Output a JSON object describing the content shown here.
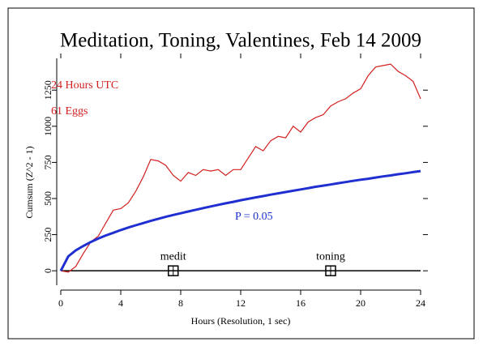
{
  "chart_data": {
    "type": "line",
    "title": "Meditation, Toning, Valentines, Feb 14 2009",
    "x_label": "Hours (Resolution, 1 sec)",
    "y_label": "Cumsum (Z^2 - 1)",
    "annotations": [
      "24 Hours UTC",
      "61 Eggs",
      "P = 0.05"
    ],
    "x": [
      0,
      0.5,
      1,
      1.5,
      2,
      2.5,
      3,
      3.5,
      4,
      4.5,
      5,
      5.5,
      6,
      6.5,
      7,
      7.5,
      8,
      8.5,
      9,
      9.5,
      10,
      10.5,
      11,
      11.5,
      12,
      12.5,
      13,
      13.5,
      14,
      14.5,
      15,
      15.5,
      16,
      16.5,
      17,
      17.5,
      18,
      18.5,
      19,
      19.5,
      20,
      20.5,
      21,
      21.5,
      22,
      22.5,
      23,
      23.5,
      24
    ],
    "series": [
      {
        "color": "#d42020",
        "values": [
          0,
          -10,
          30,
          120,
          200,
          240,
          330,
          420,
          430,
          470,
          550,
          650,
          770,
          760,
          730,
          660,
          620,
          680,
          660,
          700,
          690,
          700,
          660,
          700,
          700,
          780,
          860,
          830,
          900,
          930,
          920,
          1000,
          960,
          1030,
          1060,
          1080,
          1140,
          1170,
          1190,
          1230,
          1260,
          1350,
          1410,
          1420,
          1430,
          1380,
          1350,
          1310,
          1190
        ]
      },
      {
        "color": "#1f2fd0",
        "values": [
          0,
          100,
          141,
          172,
          199,
          223,
          244,
          263,
          282,
          299,
          315,
          330,
          345,
          359,
          373,
          386,
          398,
          410,
          422,
          434,
          445,
          456,
          467,
          477,
          488,
          498,
          508,
          517,
          527,
          536,
          545,
          554,
          563,
          572,
          581,
          589,
          597,
          606,
          614,
          622,
          630,
          637,
          645,
          653,
          660,
          668,
          675,
          683,
          690
        ]
      }
    ],
    "markers": [
      {
        "label": "medit",
        "x": 7.5,
        "y": 0
      },
      {
        "label": "toning",
        "x": 18,
        "y": 0
      }
    ],
    "xlim": [
      0,
      24
    ],
    "xticks": [
      0,
      4,
      8,
      12,
      16,
      20,
      24
    ],
    "ylim": [
      -100,
      1470
    ],
    "yticks": [
      0,
      250,
      500,
      750,
      1000,
      1250
    ]
  }
}
